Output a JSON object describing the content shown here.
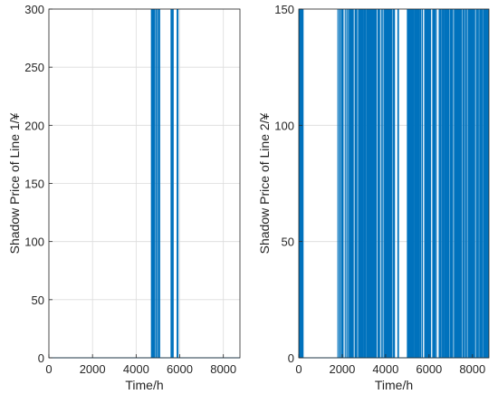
{
  "chart_data": [
    {
      "type": "line",
      "xlabel": "Time/h",
      "ylabel": "Shadow Price of Line 1/¥",
      "xlim": [
        0,
        8760
      ],
      "ylim": [
        0,
        300
      ],
      "xticks": [
        0,
        2000,
        4000,
        6000,
        8000
      ],
      "yticks": [
        0,
        50,
        100,
        150,
        200,
        250,
        300
      ],
      "grid": true,
      "color": "#0072BD",
      "baseline": 0,
      "peak": 300,
      "spike_times": [
        4700,
        4740,
        4780,
        4820,
        4860,
        4920,
        4980,
        5030,
        5080,
        5600,
        5620,
        5660,
        5700,
        5880,
        5920
      ]
    },
    {
      "type": "line",
      "xlabel": "Time/h",
      "ylabel": "Shadow Price of Line 2/¥",
      "xlim": [
        0,
        8760
      ],
      "ylim": [
        0,
        150
      ],
      "xticks": [
        0,
        2000,
        4000,
        6000,
        8000
      ],
      "yticks": [
        0,
        50,
        100,
        150
      ],
      "grid": true,
      "color": "#0072BD",
      "baseline": 0,
      "peak": 150,
      "solid_bands": [
        [
          0,
          220
        ],
        [
          5050,
          5250
        ],
        [
          5400,
          5550
        ],
        [
          5900,
          6050
        ],
        [
          6800,
          6900
        ],
        [
          7300,
          7450
        ],
        [
          7950,
          8050
        ],
        [
          8500,
          8760
        ]
      ],
      "spike_ranges": [
        [
          1800,
          4600
        ],
        [
          5000,
          8760
        ]
      ],
      "spike_density": 150
    }
  ]
}
